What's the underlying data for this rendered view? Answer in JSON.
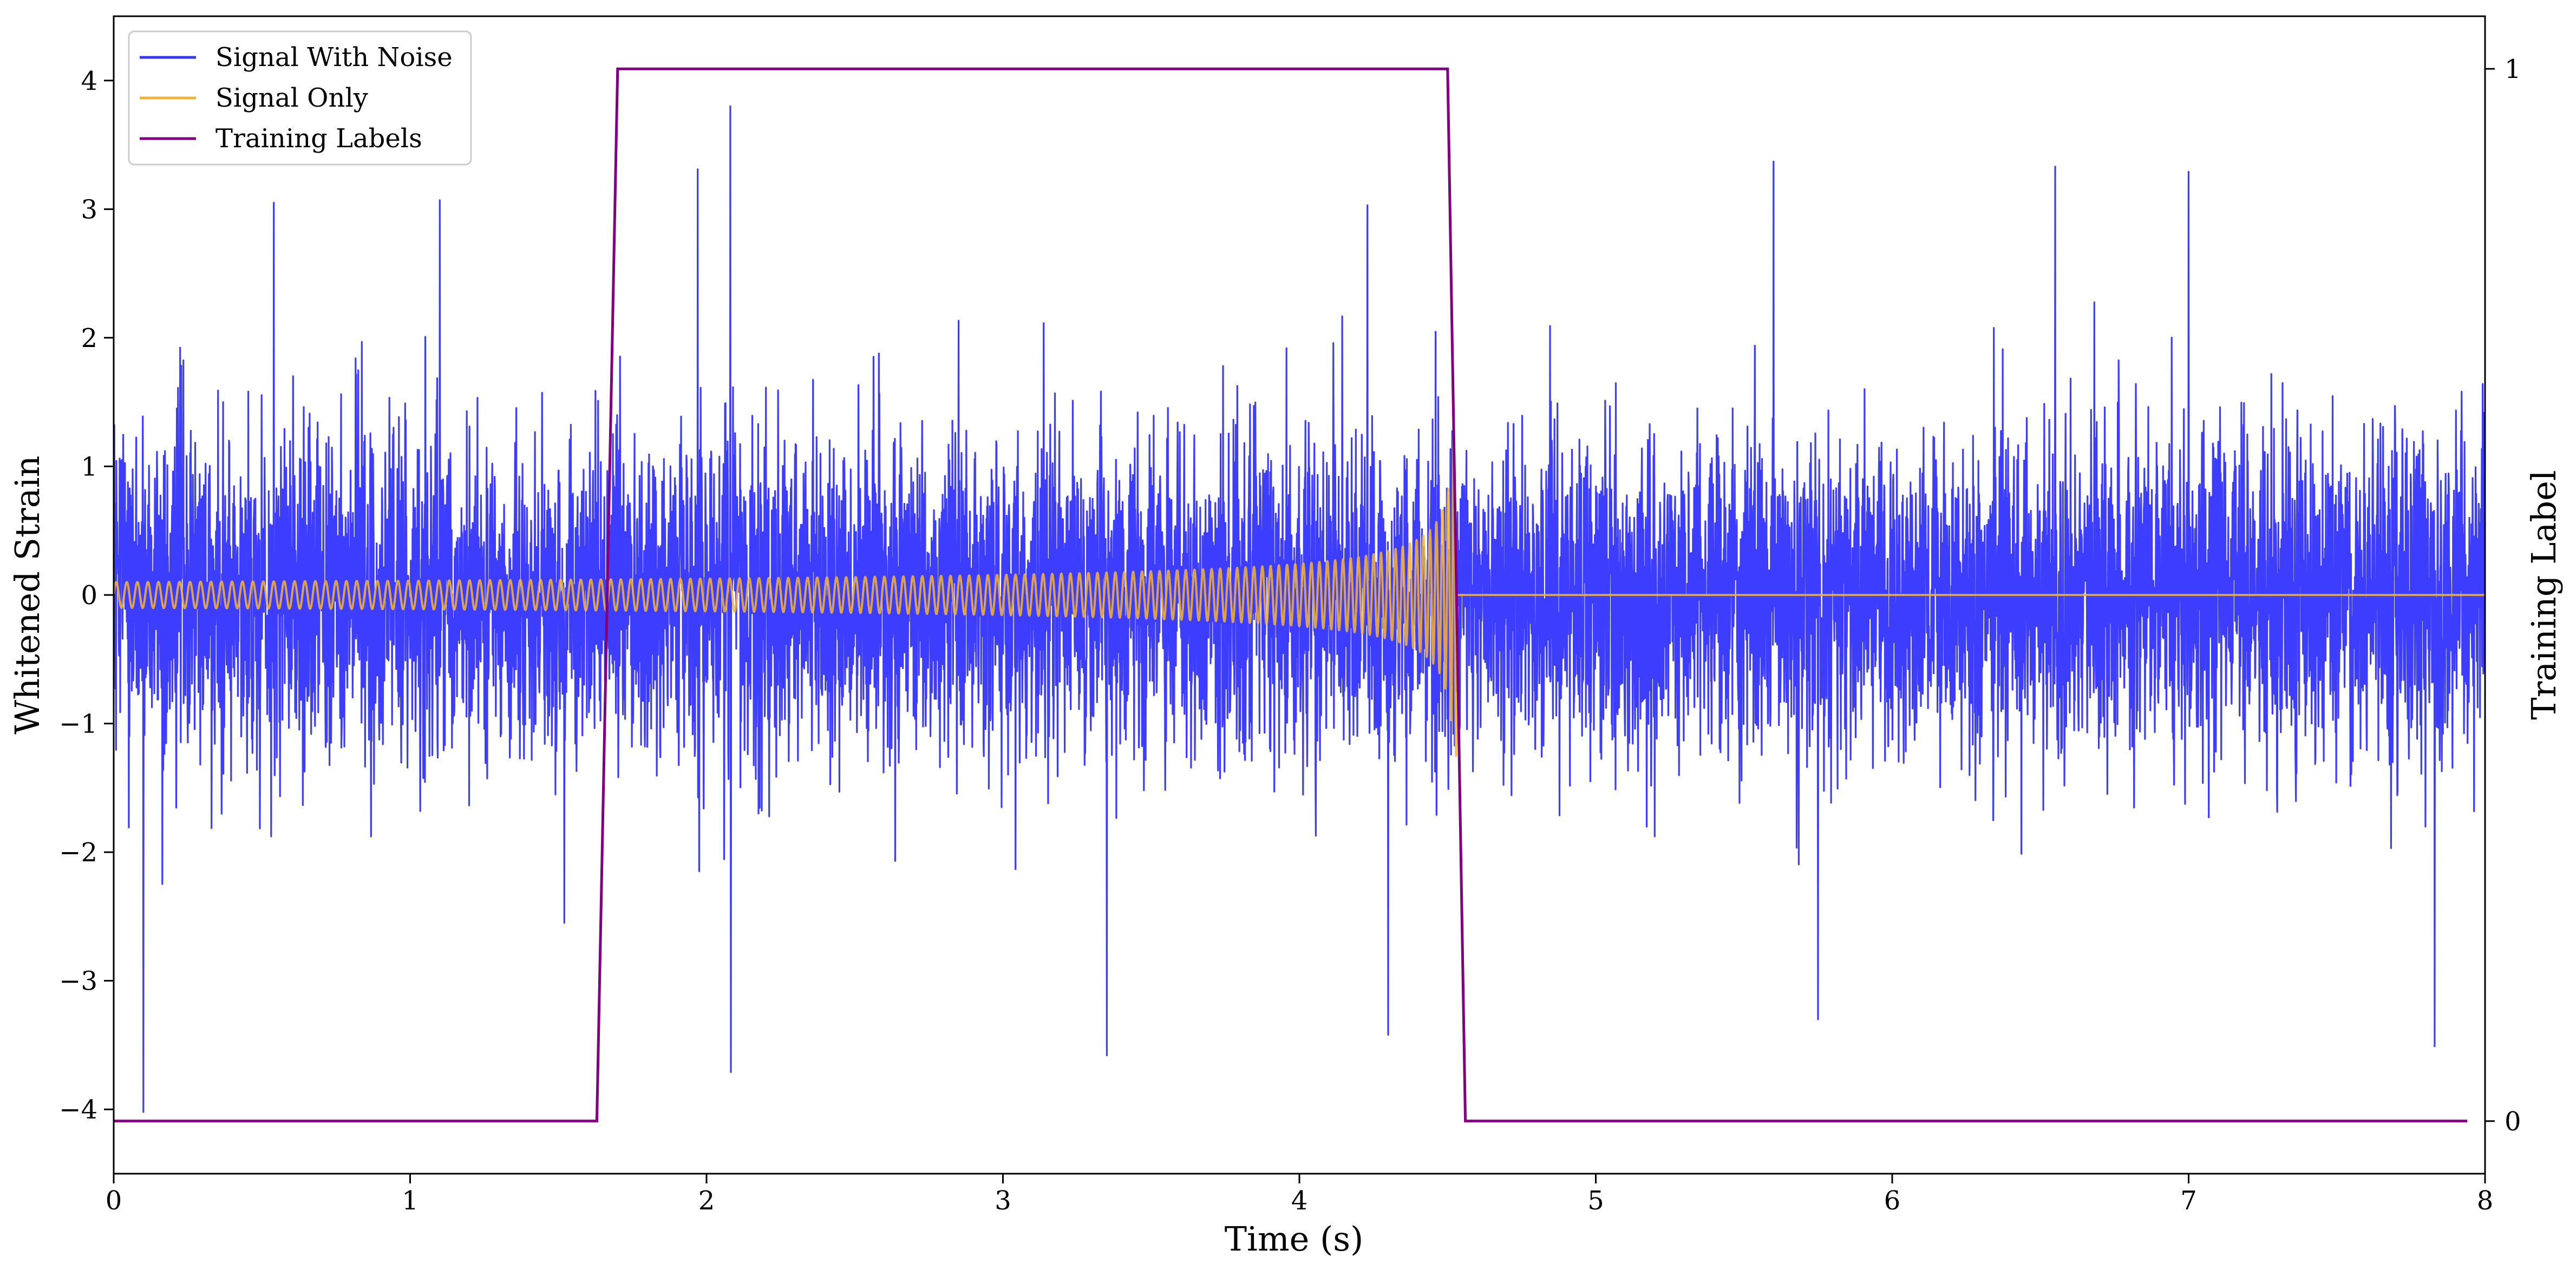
{
  "chart_data": {
    "type": "line",
    "xlabel": "Time (s)",
    "ylabel": "Whitened Strain",
    "y2label": "Training Label",
    "xlim": [
      0,
      8
    ],
    "ylim": [
      -4.5,
      4.5
    ],
    "y2lim": [
      -0.05,
      1.05
    ],
    "x_ticks": [
      0,
      1,
      2,
      3,
      4,
      5,
      6,
      7,
      8
    ],
    "x_tick_labels": [
      "0",
      "1",
      "2",
      "3",
      "4",
      "5",
      "6",
      "7",
      "8"
    ],
    "y_ticks": [
      -4,
      -3,
      -2,
      -1,
      0,
      1,
      2,
      3,
      4
    ],
    "y_tick_labels": [
      "−4",
      "−3",
      "−2",
      "−1",
      "0",
      "1",
      "2",
      "3",
      "4"
    ],
    "y2_ticks": [
      0,
      1
    ],
    "y2_tick_labels": [
      "0",
      "1"
    ],
    "grid": false,
    "legend_position": "top-left",
    "series": [
      {
        "name": "Signal With Noise",
        "color": "#3333ff",
        "axis": "left",
        "kind": "noise",
        "x_range": [
          0,
          8
        ],
        "typical_amplitude": 1.0,
        "peaks": [
          {
            "x": 0.1,
            "y": -4.02
          },
          {
            "x": 0.54,
            "y": 3.05
          },
          {
            "x": 1.1,
            "y": 3.07
          },
          {
            "x": 1.52,
            "y": -2.55
          },
          {
            "x": 1.97,
            "y": 3.31
          },
          {
            "x": 2.08,
            "y": 3.8
          },
          {
            "x": 2.08,
            "y": -3.71
          },
          {
            "x": 3.35,
            "y": -3.58
          },
          {
            "x": 4.23,
            "y": 3.03
          },
          {
            "x": 4.3,
            "y": -3.42
          },
          {
            "x": 5.6,
            "y": 3.37
          },
          {
            "x": 5.75,
            "y": -3.3
          },
          {
            "x": 6.55,
            "y": 3.33
          },
          {
            "x": 7.0,
            "y": 3.29
          },
          {
            "x": 7.83,
            "y": -3.51
          }
        ]
      },
      {
        "name": "Signal Only",
        "color": "#f5b335",
        "axis": "left",
        "kind": "chirp",
        "t_start": 0,
        "t_merger": 4.53,
        "amplitude_start": 0.1,
        "amplitude_peak": 1.25,
        "frequency_start_hz": 28,
        "frequency_peak_hz": 60,
        "post_merger_value": 0
      },
      {
        "name": "Training Labels",
        "color": "#800080",
        "axis": "right",
        "kind": "step",
        "x": [
          0,
          1.63,
          1.7,
          4.5,
          4.56,
          7.94
        ],
        "y": [
          0,
          0,
          1,
          1,
          0,
          0
        ]
      }
    ]
  }
}
